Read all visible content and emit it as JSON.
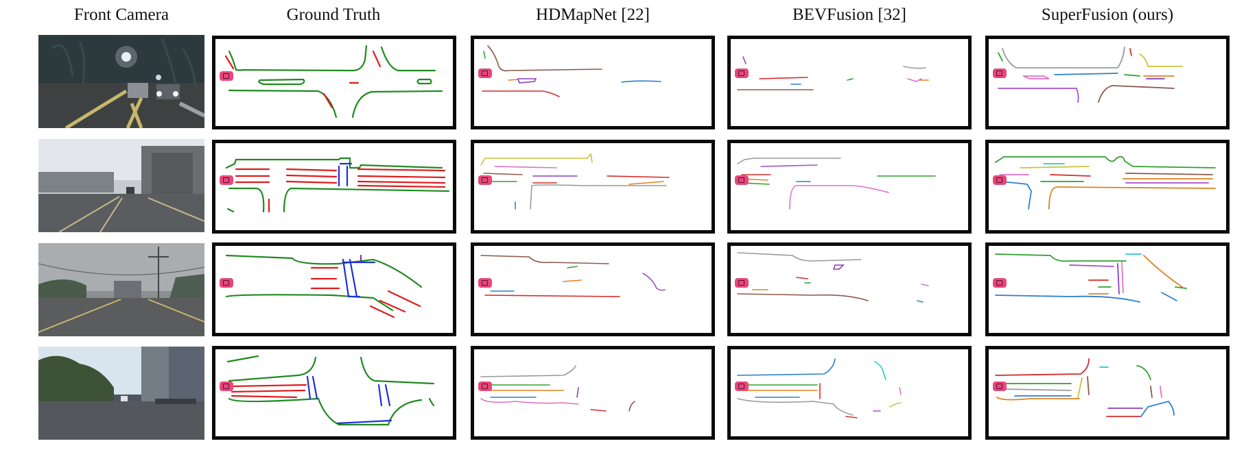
{
  "figure": {
    "columns": [
      {
        "key": "front_camera",
        "title": "Front Camera"
      },
      {
        "key": "ground_truth",
        "title": "Ground Truth"
      },
      {
        "key": "hdmapnet",
        "title": "HDMapNet [22]"
      },
      {
        "key": "bevfusion",
        "title": "BEVFusion [32]"
      },
      {
        "key": "superfusion",
        "title": "SuperFusion (ours)"
      }
    ],
    "rows": 4,
    "legend_colors": {
      "ground_truth_boundary": "#1f8a1f",
      "ground_truth_divider": "#e01b1b",
      "ground_truth_crossing": "#1f2fd6",
      "ego_vehicle": "#e8477a",
      "frame_border": "#0a0a0a"
    }
  }
}
